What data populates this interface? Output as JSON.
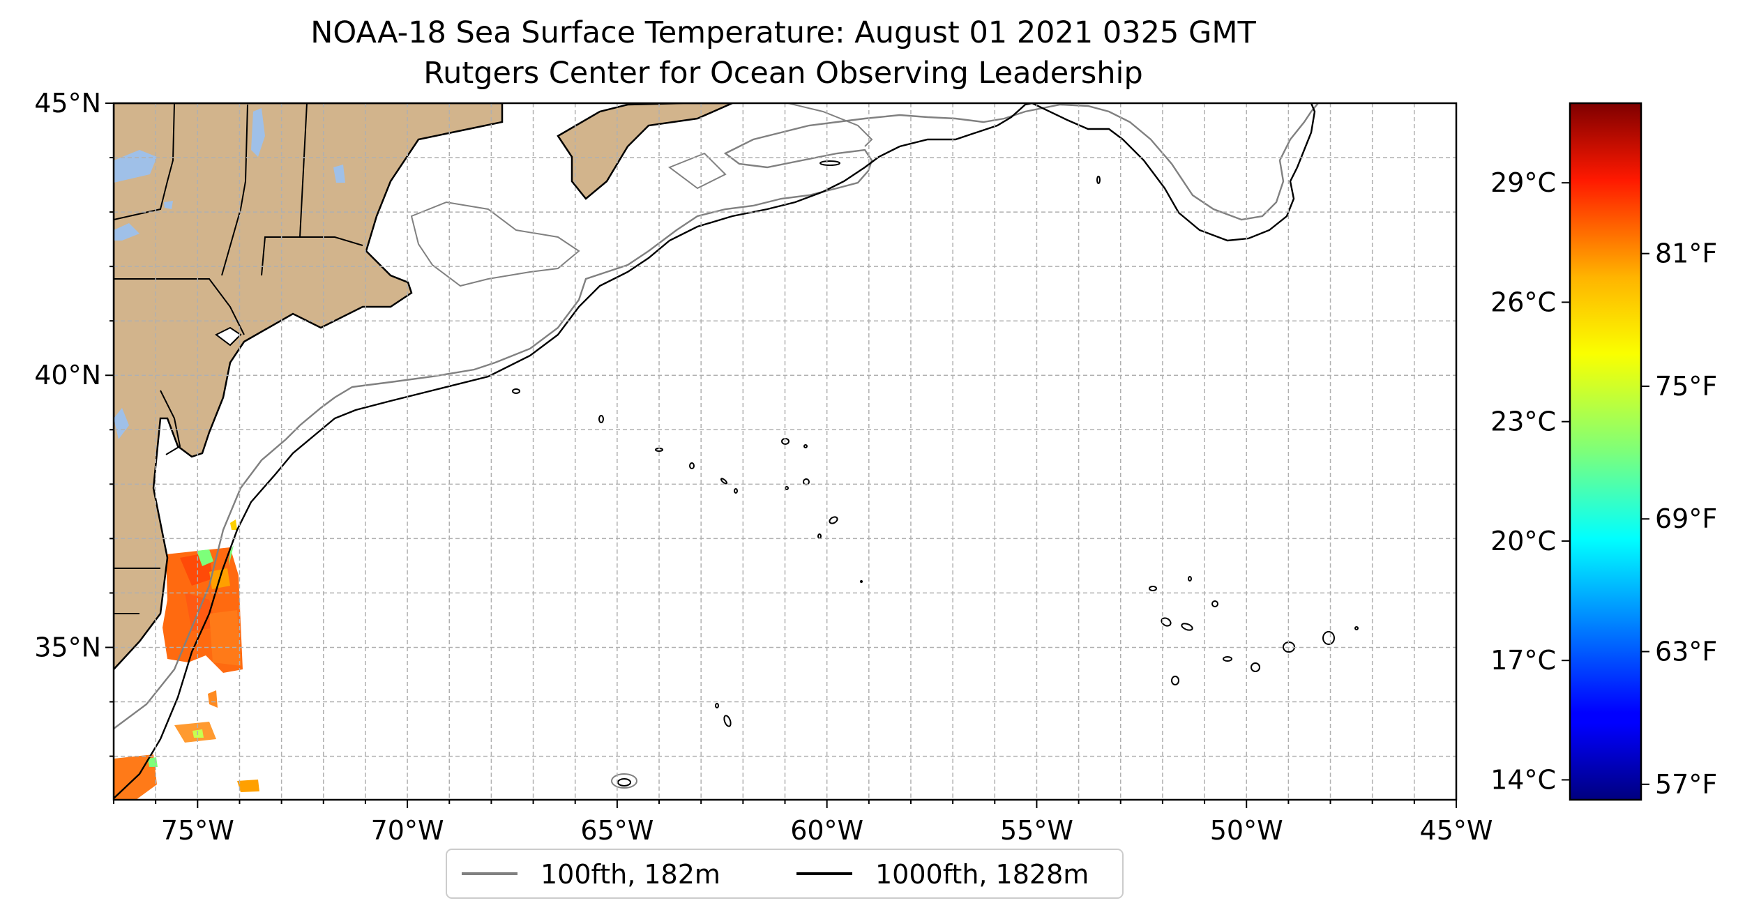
{
  "title": {
    "line1": "NOAA-18 Sea Surface Temperature: August 01 2021 0325 GMT",
    "line2": "Rutgers Center for Ocean Observing Leadership"
  },
  "map": {
    "lon_range": [
      -77,
      -45
    ],
    "lat_range": [
      32.2,
      45
    ],
    "lon_ticks": [
      {
        "value": -75,
        "label": "75°W"
      },
      {
        "value": -70,
        "label": "70°W"
      },
      {
        "value": -65,
        "label": "65°W"
      },
      {
        "value": -60,
        "label": "60°W"
      },
      {
        "value": -55,
        "label": "55°W"
      },
      {
        "value": -50,
        "label": "50°W"
      },
      {
        "value": -45,
        "label": "45°W"
      }
    ],
    "lat_ticks": [
      {
        "value": 45,
        "label": "45°N"
      },
      {
        "value": 40,
        "label": "40°N"
      },
      {
        "value": 35,
        "label": "35°N"
      }
    ],
    "grid": true,
    "land_color": "#d2b48c",
    "water_color": "#9fc0e8",
    "isobath_100_color": "#808080",
    "isobath_1000_color": "#000000"
  },
  "legend": {
    "placement": "bottom-center",
    "items": [
      {
        "label": "100fth, 182m",
        "color": "#808080"
      },
      {
        "label": "1000fth, 1828m",
        "color": "#000000"
      }
    ]
  },
  "colorbar": {
    "colormap": "jet",
    "range_c": [
      13.5,
      31
    ],
    "celsius_ticks": [
      {
        "value": 29,
        "label": "29°C"
      },
      {
        "value": 26,
        "label": "26°C"
      },
      {
        "value": 23,
        "label": "23°C"
      },
      {
        "value": 20,
        "label": "20°C"
      },
      {
        "value": 17,
        "label": "17°C"
      },
      {
        "value": 14,
        "label": "14°C"
      }
    ],
    "fahrenheit_ticks": [
      {
        "value": 81,
        "label": "81°F"
      },
      {
        "value": 75,
        "label": "75°F"
      },
      {
        "value": 69,
        "label": "69°F"
      },
      {
        "value": 63,
        "label": "63°F"
      },
      {
        "value": 57,
        "label": "57°F"
      }
    ]
  }
}
